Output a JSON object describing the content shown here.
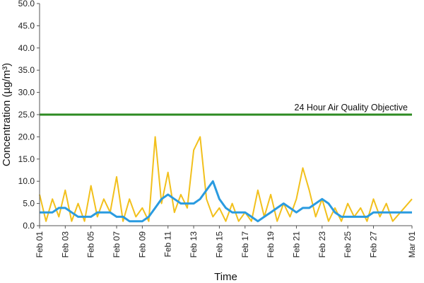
{
  "chart_data": {
    "type": "line",
    "xlabel": "Time",
    "ylabel": "Concentration (µg/m³)",
    "ylim": [
      0,
      50
    ],
    "y_ticks": [
      "0.0",
      "5.0",
      "10.0",
      "15.0",
      "20.0",
      "25.0",
      "30.0",
      "35.0",
      "40.0",
      "45.0",
      "50.0"
    ],
    "x_ticks": [
      "Feb 01",
      "Feb 03",
      "Feb 05",
      "Feb 07",
      "Feb 09",
      "Feb 11",
      "Feb 13",
      "Feb 15",
      "Feb 17",
      "Feb 19",
      "Feb 21",
      "Feb 23",
      "Feb 25",
      "Feb 27",
      "Mar 01"
    ],
    "grid": false,
    "objective": {
      "label": "24 Hour Air Quality Objective",
      "value": 25,
      "color": "#2e8b22"
    },
    "series": [
      {
        "style": "hourly",
        "color": "#f2c01c",
        "x": [
          "Feb 01",
          "Feb 01 12h",
          "Feb 02",
          "Feb 02 12h",
          "Feb 03",
          "Feb 03 12h",
          "Feb 04",
          "Feb 04 12h",
          "Feb 05",
          "Feb 05 12h",
          "Feb 06",
          "Feb 06 12h",
          "Feb 07",
          "Feb 07 12h",
          "Feb 08",
          "Feb 08 12h",
          "Feb 09",
          "Feb 09 12h",
          "Feb 10",
          "Feb 10 12h",
          "Feb 11",
          "Feb 11 12h",
          "Feb 12",
          "Feb 12 12h",
          "Feb 13",
          "Feb 13 12h",
          "Feb 14",
          "Feb 14 12h",
          "Feb 15",
          "Feb 15 12h",
          "Feb 16",
          "Feb 16 12h",
          "Feb 17",
          "Feb 17 12h",
          "Feb 18",
          "Feb 18 12h",
          "Feb 19",
          "Feb 19 12h",
          "Feb 20",
          "Feb 20 12h",
          "Feb 21",
          "Feb 21 12h",
          "Feb 22",
          "Feb 22 12h",
          "Feb 23",
          "Feb 23 12h",
          "Feb 24",
          "Feb 24 12h",
          "Feb 25",
          "Feb 25 12h",
          "Feb 26",
          "Feb 26 12h",
          "Feb 27",
          "Feb 27 12h",
          "Feb 28",
          "Feb 28 12h",
          "Mar 01"
        ],
        "values": [
          7,
          1,
          6,
          2,
          8,
          1,
          5,
          1,
          9,
          2,
          6,
          3,
          11,
          1,
          6,
          2,
          4,
          1,
          20,
          5,
          12,
          3,
          7,
          4,
          17,
          20,
          6,
          2,
          4,
          1,
          5,
          1,
          3,
          1,
          8,
          2,
          7,
          1,
          5,
          2,
          6,
          13,
          8,
          2,
          6,
          1,
          4,
          1,
          5,
          2,
          4,
          1,
          6,
          2,
          5,
          1,
          6
        ]
      },
      {
        "style": "24-hour mean",
        "color": "#2a9be0",
        "x": [
          "Feb 01",
          "Feb 01 12h",
          "Feb 02",
          "Feb 02 12h",
          "Feb 03",
          "Feb 03 12h",
          "Feb 04",
          "Feb 04 12h",
          "Feb 05",
          "Feb 05 12h",
          "Feb 06",
          "Feb 06 12h",
          "Feb 07",
          "Feb 07 12h",
          "Feb 08",
          "Feb 08 12h",
          "Feb 09",
          "Feb 09 12h",
          "Feb 10",
          "Feb 10 12h",
          "Feb 11",
          "Feb 11 12h",
          "Feb 12",
          "Feb 12 12h",
          "Feb 13",
          "Feb 13 12h",
          "Feb 14",
          "Feb 14 12h",
          "Feb 15",
          "Feb 15 12h",
          "Feb 16",
          "Feb 16 12h",
          "Feb 17",
          "Feb 17 12h",
          "Feb 18",
          "Feb 18 12h",
          "Feb 19",
          "Feb 19 12h",
          "Feb 20",
          "Feb 20 12h",
          "Feb 21",
          "Feb 21 12h",
          "Feb 22",
          "Feb 22 12h",
          "Feb 23",
          "Feb 23 12h",
          "Feb 24",
          "Feb 24 12h",
          "Feb 25",
          "Feb 25 12h",
          "Feb 26",
          "Feb 26 12h",
          "Feb 27",
          "Feb 27 12h",
          "Feb 28",
          "Feb 28 12h",
          "Mar 01"
        ],
        "values": [
          3,
          3,
          3,
          4,
          4,
          3,
          2,
          2,
          2,
          3,
          3,
          3,
          2,
          2,
          1,
          1,
          1,
          2,
          4,
          6,
          7,
          6,
          5,
          5,
          5,
          6,
          8,
          10,
          6,
          4,
          3,
          3,
          3,
          2,
          1,
          2,
          3,
          4,
          5,
          4,
          3,
          4,
          4,
          5,
          6,
          5,
          3,
          2,
          2,
          2,
          2,
          2,
          3,
          3,
          3,
          3,
          3
        ]
      }
    ]
  }
}
